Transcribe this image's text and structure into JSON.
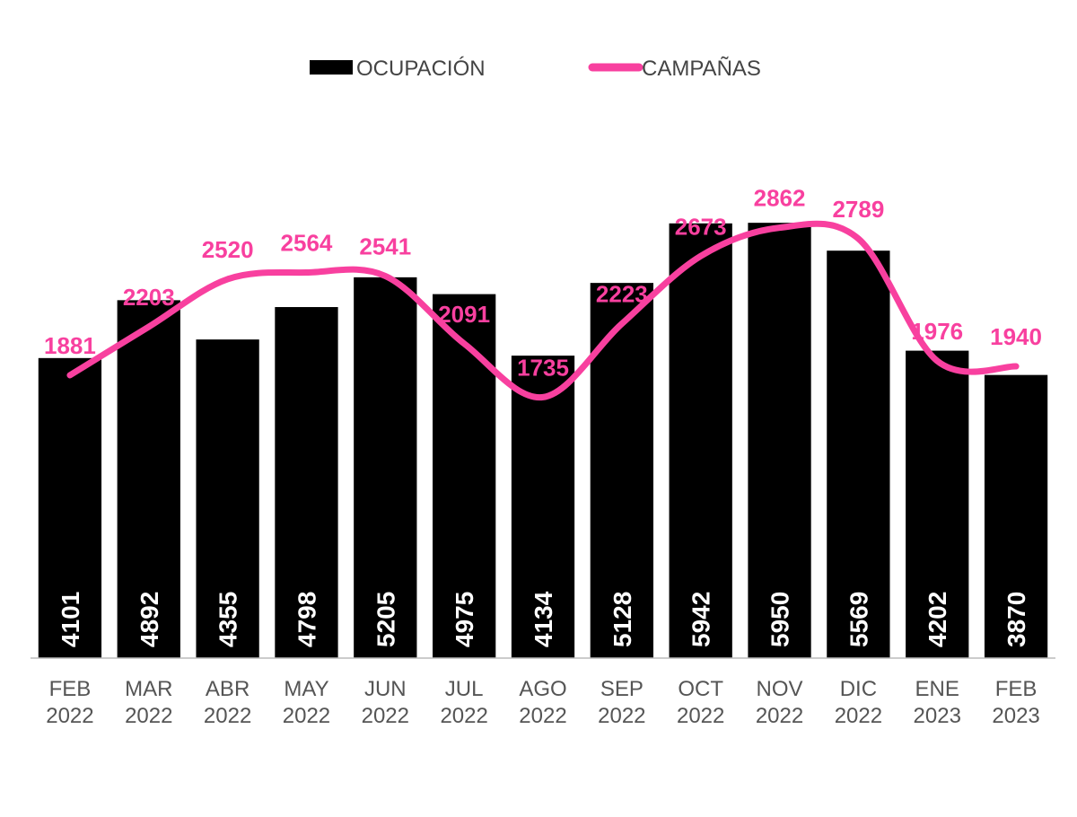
{
  "chart_data": {
    "type": "bar-line",
    "categories": [
      "FEB 2022",
      "MAR 2022",
      "ABR 2022",
      "MAY 2022",
      "JUN 2022",
      "JUL 2022",
      "AGO 2022",
      "SEP 2022",
      "OCT 2022",
      "NOV 2022",
      "DIC 2022",
      "ENE 2023",
      "FEB 2023"
    ],
    "series": [
      {
        "name": "OCUPACIÓN",
        "type": "bar",
        "color": "#000000",
        "values": [
          4101,
          4892,
          4355,
          4798,
          5205,
          4975,
          4134,
          5128,
          5942,
          5950,
          5569,
          4202,
          3870
        ]
      },
      {
        "name": "CAMPAÑAS",
        "type": "line",
        "axis": "y2",
        "color": "#f8409f",
        "values": [
          1881,
          2203,
          2520,
          2564,
          2541,
          2091,
          1735,
          2223,
          2673,
          2862,
          2789,
          1976,
          1940
        ]
      }
    ],
    "ylim": [
      0,
      7400
    ],
    "y2lim": [
      0,
      3600
    ],
    "legend": "top"
  }
}
